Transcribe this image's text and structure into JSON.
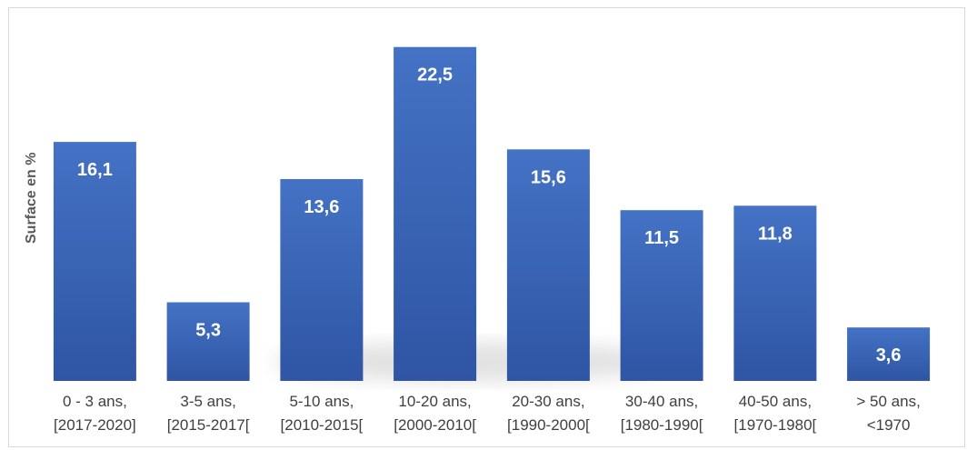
{
  "chart_data": {
    "type": "bar",
    "title": "",
    "xlabel": "",
    "ylabel": "Surface en %",
    "categories": [
      [
        "0 - 3 ans,",
        "[2017-2020]"
      ],
      [
        "3-5 ans,",
        "[2015-2017["
      ],
      [
        "5-10 ans,",
        "[2010-2015["
      ],
      [
        "10-20 ans,",
        "[2000-2010["
      ],
      [
        "20-30 ans,",
        "[1990-2000["
      ],
      [
        "30-40 ans,",
        "[1980-1990["
      ],
      [
        "40-50 ans,",
        "[1970-1980["
      ],
      [
        "> 50 ans,",
        "<1970"
      ]
    ],
    "values": [
      16.1,
      5.3,
      13.6,
      22.5,
      15.6,
      11.5,
      11.8,
      3.6
    ],
    "value_labels": [
      "16,1",
      "5,3",
      "13,6",
      "22,5",
      "15,6",
      "11,5",
      "11,8",
      "3,6"
    ],
    "ylim": [
      0,
      24.5
    ],
    "grid": false,
    "legend": "none",
    "colors": {
      "bar_top": "#4472c4",
      "bar_bottom": "#2f55a4",
      "label_text": "#ffffff",
      "tick_text": "#404040",
      "axis_title_text": "#595959",
      "frame_border": "#d9d9d9"
    }
  }
}
